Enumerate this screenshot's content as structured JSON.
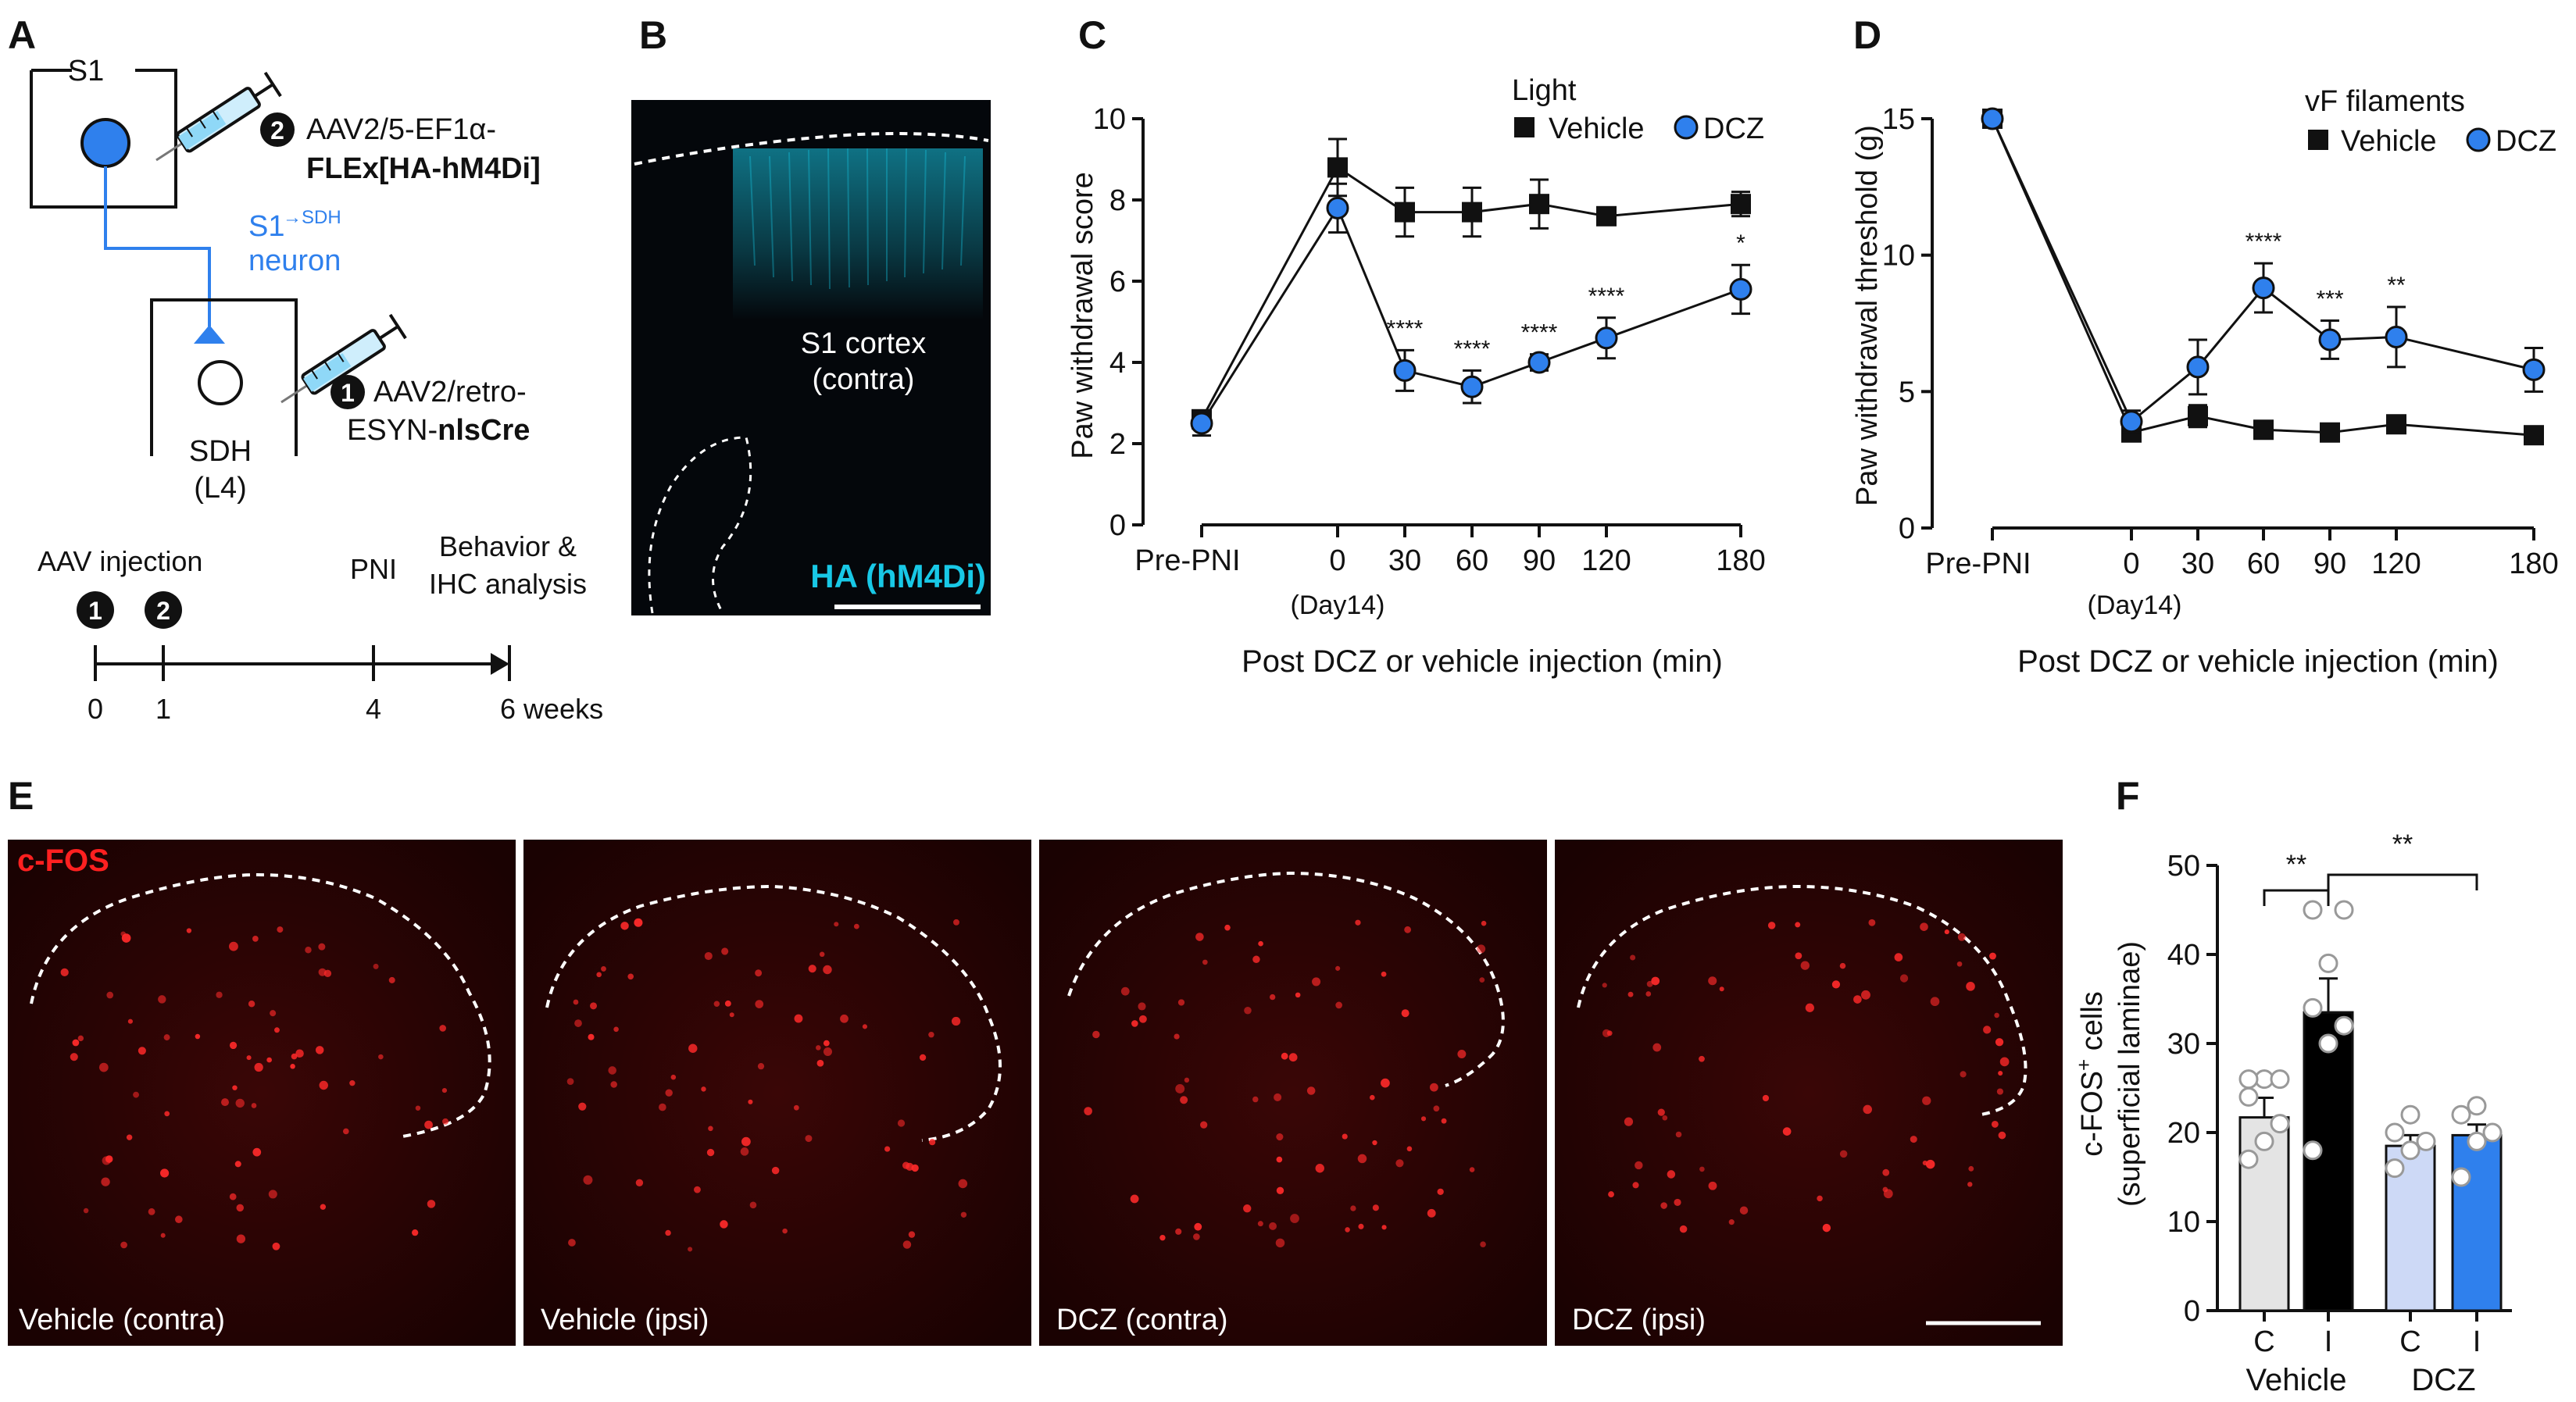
{
  "panels": {
    "a": {
      "letter": "A",
      "s1_label": "S1",
      "virus2_num": "2",
      "virus2_line1": "AAV2/5-EF1α-",
      "virus2_line2": "FLEx[HA-hM4Di]",
      "neuron_line1": "S1",
      "neuron_super": "→SDH",
      "neuron_line2": "neuron",
      "virus1_num": "1",
      "virus1_line1": "AAV2/retro-",
      "virus1_line2_pre": "ESYN-",
      "virus1_line2_bold": "nlsCre",
      "sdh_line1": "SDH",
      "sdh_line2": "(L4)",
      "timeline": {
        "aav_label": "AAV injection",
        "inj1": "1",
        "inj2": "2",
        "pni_label": "PNI",
        "behav_line1": "Behavior &",
        "behav_line2": "IHC analysis",
        "ticks": [
          "0",
          "1",
          "4",
          "6 weeks"
        ]
      }
    },
    "b": {
      "letter": "B",
      "region_line1": "S1 cortex",
      "region_line2": "(contra)",
      "stain": "HA (hM4Di)"
    },
    "e": {
      "letter": "E",
      "stain": "c-FOS",
      "images": [
        "Vehicle (contra)",
        "Vehicle (ipsi)",
        "DCZ (contra)",
        "DCZ (ipsi)"
      ]
    }
  },
  "colors": {
    "vehicle": "#111111",
    "dcz": "#2f80ed",
    "cyan": "#18c8e6",
    "red": "#ff2020",
    "light_gray": "#e4e4e4",
    "light_blue": "#cdd9f6"
  },
  "chart_data": [
    {
      "id": "C",
      "type": "line",
      "letter": "C",
      "legend_title": "Light",
      "ylabel": "Paw withdrawal score",
      "xlabel": "Post DCZ or vehicle injection (min)",
      "ylim": [
        0,
        10
      ],
      "yticks": [
        "0",
        "2",
        "4",
        "6",
        "8",
        "10"
      ],
      "x": [
        "Pre-PNI",
        "0",
        "30",
        "60",
        "90",
        "120",
        "180"
      ],
      "x_sub": "(Day14)",
      "series": [
        {
          "name": "Vehicle",
          "values": [
            2.6,
            8.8,
            7.7,
            7.7,
            7.9,
            7.6,
            7.9
          ],
          "err": [
            0.2,
            0.7,
            0.6,
            0.6,
            0.6,
            0.2,
            0.3
          ]
        },
        {
          "name": "DCZ",
          "values": [
            2.5,
            7.8,
            3.8,
            3.4,
            4.0,
            4.6,
            5.8
          ],
          "err": [
            0.3,
            0.6,
            0.5,
            0.4,
            0.2,
            0.5,
            0.6
          ]
        }
      ],
      "significance": [
        "",
        "",
        "****",
        "****",
        "****",
        "****",
        "*"
      ]
    },
    {
      "id": "D",
      "type": "line",
      "letter": "D",
      "legend_title": "vF filaments",
      "ylabel": "Paw withdrawal threshold (g)",
      "xlabel": "Post DCZ or vehicle injection (min)",
      "ylim": [
        0,
        15
      ],
      "yticks": [
        "0",
        "5",
        "10",
        "15"
      ],
      "x": [
        "Pre-PNI",
        "0",
        "30",
        "60",
        "90",
        "120",
        "180"
      ],
      "x_sub": "(Day14)",
      "series": [
        {
          "name": "Vehicle",
          "values": [
            15.0,
            3.5,
            4.1,
            3.6,
            3.5,
            3.8,
            3.4
          ],
          "err": [
            0.2,
            0.3,
            0.4,
            0.2,
            0.2,
            0.2,
            0.2
          ]
        },
        {
          "name": "DCZ",
          "values": [
            15.0,
            3.9,
            5.9,
            8.8,
            6.9,
            7.0,
            5.8
          ],
          "err": [
            0.2,
            0.4,
            1.0,
            0.9,
            0.7,
            1.1,
            0.8
          ]
        }
      ],
      "significance": [
        "",
        "",
        "",
        "****",
        "***",
        "**",
        ""
      ]
    },
    {
      "id": "F",
      "type": "bar",
      "letter": "F",
      "ylabel_line1": "c-FOS",
      "ylabel_super": "+",
      "ylabel_tail": " cells",
      "ylabel_line2": "(superficial laminae)",
      "ylim": [
        0,
        50
      ],
      "yticks": [
        "0",
        "10",
        "20",
        "30",
        "40",
        "50"
      ],
      "categories": [
        "C",
        "I",
        "C",
        "I"
      ],
      "groups": [
        "Vehicle",
        "DCZ"
      ],
      "values": [
        21.7,
        33.5,
        18.5,
        19.7
      ],
      "err": [
        2.2,
        3.8,
        1.2,
        1.2
      ],
      "points": [
        [
          17,
          19,
          21,
          24,
          26,
          26,
          26
        ],
        [
          18,
          30,
          32,
          34,
          39,
          45,
          45
        ],
        [
          16,
          18,
          19,
          20,
          22
        ],
        [
          15,
          19,
          20,
          22,
          23
        ]
      ],
      "significance": [
        {
          "label": "**",
          "between": [
            0,
            1
          ]
        },
        {
          "label": "**",
          "between": [
            1,
            3
          ]
        }
      ]
    }
  ]
}
